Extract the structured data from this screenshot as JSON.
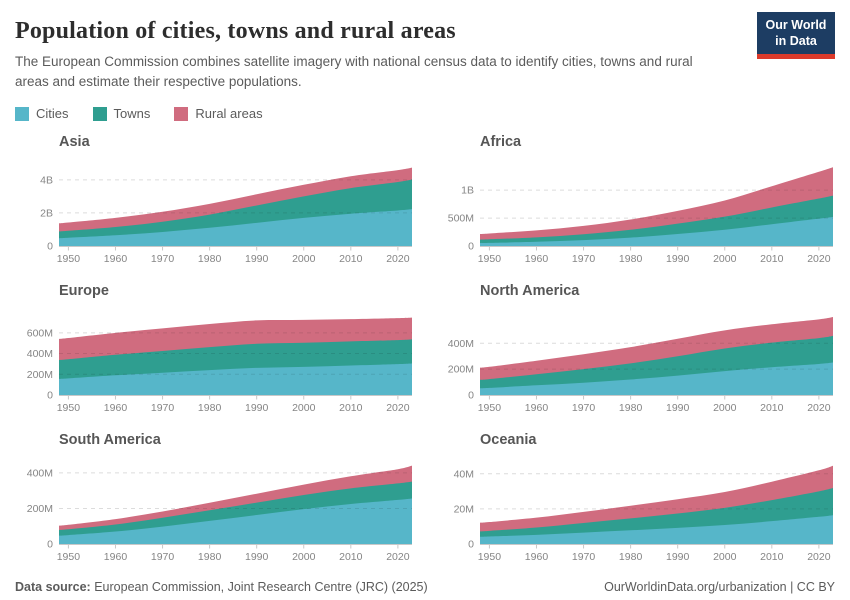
{
  "header": {
    "title": "Population of cities, towns and rural areas",
    "subtitle": "The European Commission combines satellite imagery with national census data to identify cities, towns and rural areas and estimate their respective populations.",
    "logo": {
      "line1": "Our World",
      "line2": "in Data"
    }
  },
  "legend": [
    {
      "label": "Cities",
      "color": "#56B6C9"
    },
    {
      "label": "Towns",
      "color": "#2F9E90"
    },
    {
      "label": "Rural areas",
      "color": "#D06C7F"
    }
  ],
  "footer": {
    "source_label": "Data source:",
    "source_text": " European Commission, Joint Research Centre (JRC) (2025)",
    "right_text": "OurWorldinData.org/urbanization | CC BY"
  },
  "chart_data": [
    {
      "type": "area",
      "stacked": true,
      "title": "Asia",
      "unit": "billion people",
      "x": [
        1948,
        1950,
        1960,
        1970,
        1980,
        1990,
        2000,
        2010,
        2020,
        2023
      ],
      "xticks": [
        1950,
        1960,
        1970,
        1980,
        1990,
        2000,
        2010,
        2020
      ],
      "xlim": [
        1948,
        2023
      ],
      "ylim": [
        0,
        5.2
      ],
      "yticks": [
        {
          "value": 0,
          "label": "0"
        },
        {
          "value": 2,
          "label": "2B"
        },
        {
          "value": 4,
          "label": "4B"
        }
      ],
      "series": [
        {
          "name": "Cities",
          "values": [
            0.47,
            0.5,
            0.65,
            0.85,
            1.1,
            1.4,
            1.7,
            1.95,
            2.15,
            2.23
          ]
        },
        {
          "name": "Towns",
          "values": [
            0.41,
            0.42,
            0.5,
            0.62,
            0.8,
            1.05,
            1.3,
            1.55,
            1.72,
            1.79
          ]
        },
        {
          "name": "Rural areas",
          "values": [
            0.49,
            0.5,
            0.55,
            0.6,
            0.65,
            0.68,
            0.7,
            0.72,
            0.72,
            0.72
          ]
        }
      ]
    },
    {
      "type": "area",
      "stacked": true,
      "title": "Africa",
      "unit": "million people",
      "x": [
        1948,
        1950,
        1960,
        1970,
        1980,
        1990,
        2000,
        2010,
        2020,
        2023
      ],
      "xticks": [
        1950,
        1960,
        1970,
        1980,
        1990,
        2000,
        2010,
        2020
      ],
      "xlim": [
        1948,
        2023
      ],
      "ylim": [
        0,
        1540
      ],
      "yticks": [
        {
          "value": 0,
          "label": "0"
        },
        {
          "value": 500,
          "label": "500M"
        },
        {
          "value": 1000,
          "label": "1B"
        }
      ],
      "series": [
        {
          "name": "Cities",
          "values": [
            52,
            55,
            75,
            105,
            150,
            215,
            290,
            390,
            490,
            520
          ]
        },
        {
          "name": "Towns",
          "values": [
            62,
            65,
            80,
            105,
            140,
            185,
            235,
            300,
            360,
            383
          ]
        },
        {
          "name": "Rural areas",
          "values": [
            100,
            105,
            125,
            150,
            185,
            230,
            290,
            380,
            480,
            508
          ]
        }
      ]
    },
    {
      "type": "area",
      "stacked": true,
      "title": "Europe",
      "unit": "million people",
      "x": [
        1948,
        1950,
        1960,
        1970,
        1980,
        1990,
        2000,
        2010,
        2020,
        2023
      ],
      "xticks": [
        1950,
        1960,
        1970,
        1980,
        1990,
        2000,
        2010,
        2020
      ],
      "xlim": [
        1948,
        2023
      ],
      "ylim": [
        0,
        830
      ],
      "yticks": [
        {
          "value": 0,
          "label": "0"
        },
        {
          "value": 200,
          "label": "200M"
        },
        {
          "value": 400,
          "label": "400M"
        },
        {
          "value": 600,
          "label": "600M"
        }
      ],
      "series": [
        {
          "name": "Cities",
          "values": [
            155,
            160,
            190,
            215,
            240,
            262,
            272,
            285,
            298,
            304
          ]
        },
        {
          "name": "Towns",
          "values": [
            183,
            185,
            198,
            210,
            222,
            232,
            232,
            232,
            232,
            233
          ]
        },
        {
          "name": "Rural areas",
          "values": [
            203,
            205,
            212,
            218,
            223,
            226,
            221,
            215,
            212,
            210
          ]
        }
      ]
    },
    {
      "type": "area",
      "stacked": true,
      "title": "North America",
      "unit": "million people",
      "x": [
        1948,
        1950,
        1960,
        1970,
        1980,
        1990,
        2000,
        2010,
        2020,
        2023
      ],
      "xticks": [
        1950,
        1960,
        1970,
        1980,
        1990,
        2000,
        2010,
        2020
      ],
      "xlim": [
        1948,
        2023
      ],
      "ylim": [
        0,
        665
      ],
      "yticks": [
        {
          "value": 0,
          "label": "0"
        },
        {
          "value": 200,
          "label": "200M"
        },
        {
          "value": 400,
          "label": "400M"
        }
      ],
      "series": [
        {
          "name": "Cities",
          "values": [
            52,
            55,
            75,
            95,
            120,
            150,
            185,
            215,
            240,
            251
          ]
        },
        {
          "name": "Towns",
          "values": [
            66,
            68,
            85,
            105,
            125,
            150,
            175,
            190,
            200,
            206
          ]
        },
        {
          "name": "Rural areas",
          "values": [
            93,
            95,
            105,
            115,
            125,
            135,
            140,
            142,
            145,
            146
          ]
        }
      ]
    },
    {
      "type": "area",
      "stacked": true,
      "title": "South America",
      "unit": "million people",
      "x": [
        1948,
        1950,
        1960,
        1970,
        1980,
        1990,
        2000,
        2010,
        2020,
        2023
      ],
      "xticks": [
        1950,
        1960,
        1970,
        1980,
        1990,
        2000,
        2010,
        2020
      ],
      "xlim": [
        1948,
        2023
      ],
      "ylim": [
        0,
        484
      ],
      "yticks": [
        {
          "value": 0,
          "label": "0"
        },
        {
          "value": 200,
          "label": "200M"
        },
        {
          "value": 400,
          "label": "400M"
        }
      ],
      "series": [
        {
          "name": "Cities",
          "values": [
            47,
            50,
            70,
            98,
            130,
            163,
            196,
            225,
            248,
            256
          ]
        },
        {
          "name": "Towns",
          "values": [
            32,
            33,
            40,
            50,
            60,
            70,
            80,
            88,
            93,
            95
          ]
        },
        {
          "name": "Rural areas",
          "values": [
            24,
            25,
            30,
            35,
            42,
            50,
            58,
            68,
            80,
            90
          ]
        }
      ]
    },
    {
      "type": "area",
      "stacked": true,
      "title": "Oceania",
      "unit": "million people",
      "x": [
        1948,
        1950,
        1960,
        1970,
        1980,
        1990,
        2000,
        2010,
        2020,
        2023
      ],
      "xticks": [
        1950,
        1960,
        1970,
        1980,
        1990,
        2000,
        2010,
        2020
      ],
      "xlim": [
        1948,
        2023
      ],
      "ylim": [
        0,
        49
      ],
      "yticks": [
        {
          "value": 0,
          "label": "0"
        },
        {
          "value": 20,
          "label": "20M"
        },
        {
          "value": 40,
          "label": "40M"
        }
      ],
      "series": [
        {
          "name": "Cities",
          "values": [
            4.1,
            4.3,
            5.2,
            6.5,
            7.8,
            9.2,
            10.8,
            13.0,
            15.5,
            16.4
          ]
        },
        {
          "name": "Towns",
          "values": [
            3.1,
            3.2,
            4.2,
            5.5,
            6.8,
            8.2,
            9.8,
            12.0,
            14.5,
            15.5
          ]
        },
        {
          "name": "Rural areas",
          "values": [
            4.9,
            5.0,
            5.6,
            6.3,
            7.2,
            8.1,
            9.0,
            10.5,
            12.0,
            12.7
          ]
        }
      ]
    }
  ]
}
